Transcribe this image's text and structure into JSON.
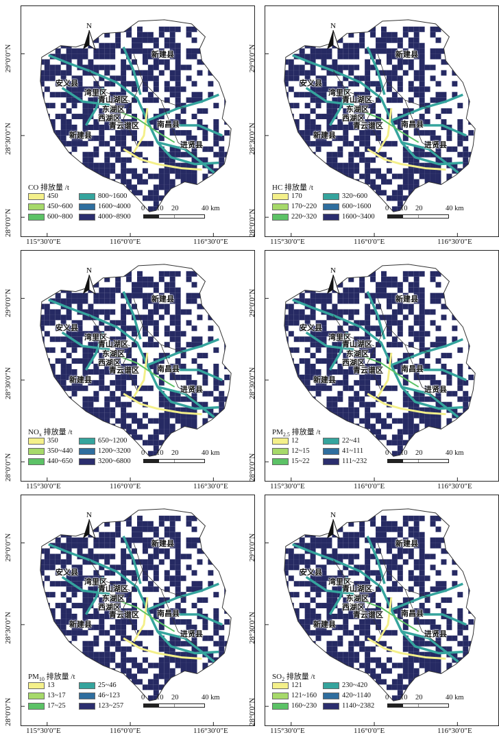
{
  "lat_labels": [
    "29°0′0″N",
    "28°30′0″N",
    "28°0′0″N"
  ],
  "lon_labels": [
    "115°30′0″E",
    "116°0′0″E",
    "116°30′0″E"
  ],
  "north_label": "N",
  "scale": {
    "ticks": [
      "0",
      "10",
      "20",
      "40 km"
    ]
  },
  "places": [
    "新建县",
    "安义县",
    "湾里区",
    "青山湖区",
    "东湖区",
    "西湖区",
    "青云谱区",
    "南昌县",
    "新建县",
    "进贤县"
  ],
  "colors": {
    "classes": [
      "#f4f08a",
      "#a6d96a",
      "#5cc266",
      "#35a49d",
      "#2f6e9e",
      "#2b2e6e"
    ],
    "road_yellow": "#f4f08a",
    "road_teal": "#35a49d",
    "dense": "#262a63",
    "boundary": "#333333"
  },
  "panels": [
    {
      "title_main": "CO",
      "title_sub": "",
      "title_unit": " 排放量 /t",
      "ranges": [
        "450",
        "450~600",
        "600~800",
        "800~1600",
        "1600~4000",
        "4000~8900"
      ]
    },
    {
      "title_main": "HC",
      "title_sub": "",
      "title_unit": " 排放量 /t",
      "ranges": [
        "170",
        "170~220",
        "220~320",
        "320~600",
        "600~1600",
        "1600~3400"
      ]
    },
    {
      "title_main": "NO",
      "title_sub": "x",
      "title_unit": " 排放量 /t",
      "ranges": [
        "350",
        "350~440",
        "440~650",
        "650~1200",
        "1200~3200",
        "3200~6800"
      ]
    },
    {
      "title_main": "PM",
      "title_sub": "2.5",
      "title_unit": " 排放量 /t",
      "ranges": [
        "12",
        "12~15",
        "15~22",
        "22~41",
        "41~111",
        "111~232"
      ]
    },
    {
      "title_main": "PM",
      "title_sub": "10",
      "title_unit": " 排放量 /t",
      "ranges": [
        "13",
        "13~17",
        "17~25",
        "25~46",
        "46~123",
        "123~257"
      ]
    },
    {
      "title_main": "SO",
      "title_sub": "2",
      "title_unit": " 排放量 /t",
      "ranges": [
        "121",
        "121~160",
        "160~230",
        "230~420",
        "420~1140",
        "1140~2382"
      ]
    }
  ]
}
